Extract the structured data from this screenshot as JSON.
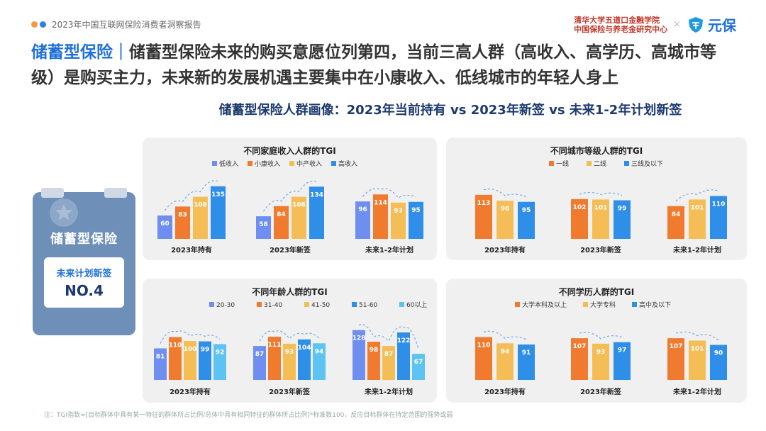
{
  "header": {
    "report_tag": "2023年中国互联网保险消费者洞察报告",
    "institution_line1": "清华大学五道口金融学院",
    "institution_line2": "中国保险与养老金研究中心",
    "times_sign": "×",
    "partner_logo_text": "元保"
  },
  "headline": {
    "key": "储蓄型保险｜",
    "text": "储蓄型保险未来的购买意愿位列第四，当前三高人群（高收入、高学历、高城市等级）是购买主力，未来新的发展机遇主要集中在小康收入、低线城市的年轻人身上"
  },
  "subtitle": "储蓄型保险人群画像：2023年当前持有 vs 2023年新签 vs 未来1-2年计划新签",
  "card": {
    "title": "储蓄型保险",
    "line1": "未来计划新签",
    "line2": "NO.4"
  },
  "footnote": "注：TGI指数=[目标群体中具有某一特征的群体所占比例/总体中具有相同特征的群体所占比例]*标准数100，反应目标群体在特定范围的强势或弱",
  "chart_data": [
    {
      "id": "income",
      "type": "bar",
      "title": "不同家庭收入人群的TGI",
      "categories": [
        "2023年持有",
        "2023年新签",
        "未来1-2年计划"
      ],
      "series": [
        {
          "name": "低收入",
          "values": [
            60,
            58,
            96
          ]
        },
        {
          "name": "小康收入",
          "values": [
            83,
            84,
            114
          ]
        },
        {
          "name": "中产收入",
          "values": [
            108,
            108,
            93
          ]
        },
        {
          "name": "高收入",
          "values": [
            135,
            134,
            95
          ]
        }
      ],
      "colors": [
        "#6e8ef0",
        "#f07b2e",
        "#f5bd55",
        "#2f8ee8"
      ]
    },
    {
      "id": "city",
      "type": "bar",
      "title": "不同城市等级人群的TGI",
      "categories": [
        "2023年持有",
        "2023年新签",
        "未来1-2年计划"
      ],
      "series": [
        {
          "name": "一线",
          "values": [
            113,
            102,
            84
          ]
        },
        {
          "name": "二线",
          "values": [
            98,
            101,
            101
          ]
        },
        {
          "name": "三线及以下",
          "values": [
            95,
            99,
            110
          ]
        }
      ],
      "colors": [
        "#f07b2e",
        "#f5bd55",
        "#2f8ee8"
      ]
    },
    {
      "id": "age",
      "type": "bar",
      "title": "不同年龄人群的TGI",
      "categories": [
        "2023年持有",
        "2023年新签",
        "未来1-2年计划"
      ],
      "series": [
        {
          "name": "20-30",
          "values": [
            81,
            87,
            128
          ]
        },
        {
          "name": "31-40",
          "values": [
            110,
            111,
            98
          ]
        },
        {
          "name": "41-50",
          "values": [
            100,
            93,
            87
          ]
        },
        {
          "name": "51-60",
          "values": [
            99,
            104,
            122
          ]
        },
        {
          "name": "60以上",
          "values": [
            92,
            94,
            67
          ]
        }
      ],
      "colors": [
        "#6e8ef0",
        "#f07b2e",
        "#f5bd55",
        "#2f8ee8",
        "#5cc3f2"
      ]
    },
    {
      "id": "edu",
      "type": "bar",
      "title": "不同学历人群的TGI",
      "categories": [
        "2023年持有",
        "2023年新签",
        "未来1-2年计划"
      ],
      "series": [
        {
          "name": "大学本科及以上",
          "values": [
            110,
            107,
            107
          ]
        },
        {
          "name": "大学专科",
          "values": [
            94,
            93,
            101
          ]
        },
        {
          "name": "高中及以下",
          "values": [
            91,
            97,
            90
          ]
        }
      ],
      "colors": [
        "#f07b2e",
        "#f5bd55",
        "#2f8ee8"
      ]
    }
  ]
}
